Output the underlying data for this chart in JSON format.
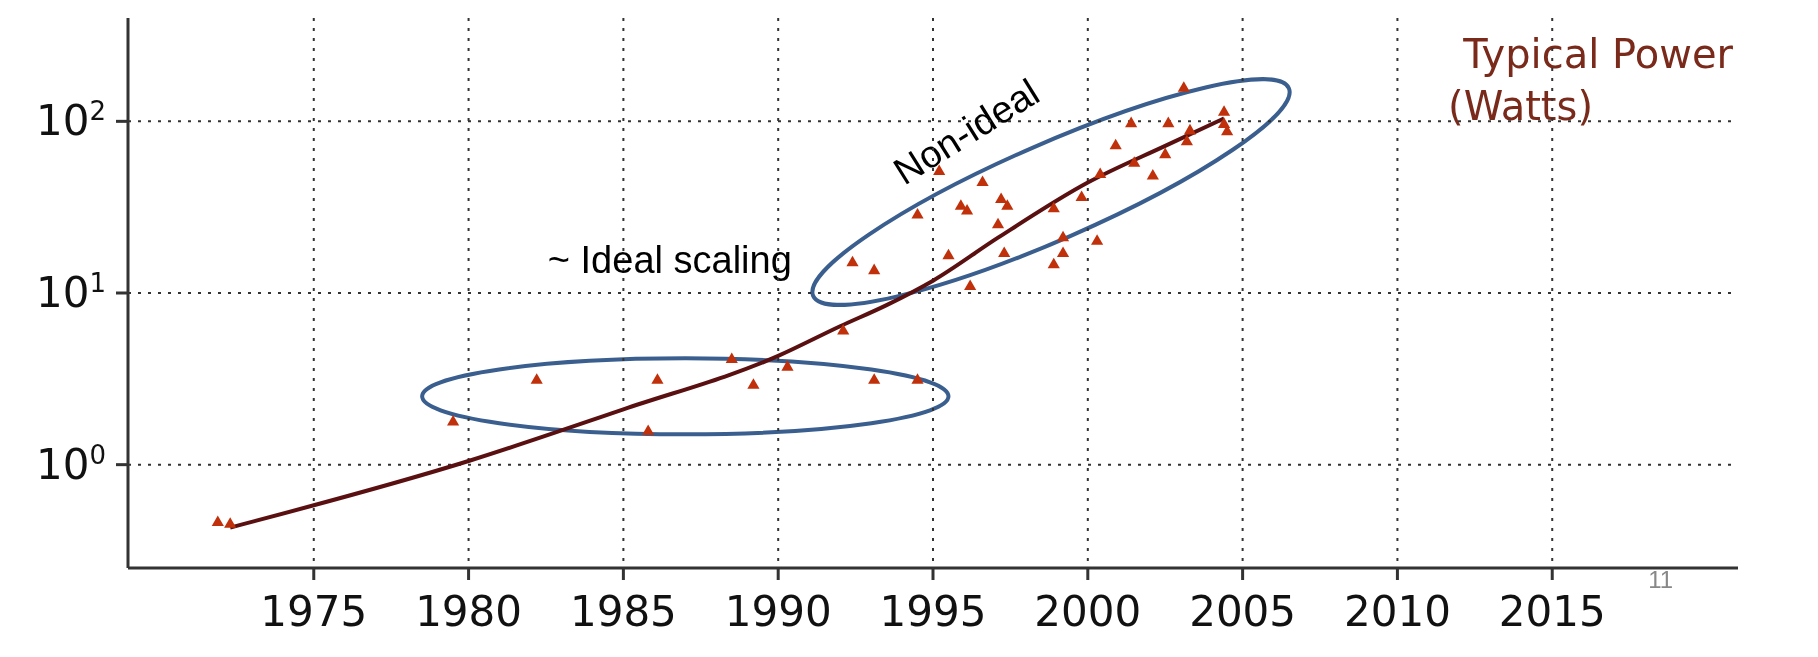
{
  "chart_data": {
    "type": "scatter",
    "ylabel": "Typical Power (Watts)",
    "log": "y",
    "grid": true,
    "marker": "triangle",
    "xlim": [
      1969,
      2021
    ],
    "xticks": [
      1975,
      1980,
      1985,
      1990,
      1995,
      2000,
      2005,
      2010,
      2015
    ],
    "ylim": [
      0.25,
      400
    ],
    "yticks": [
      {
        "value": 1,
        "label": "10$^{0}$"
      },
      {
        "value": 10,
        "label": "10$^{1}$"
      },
      {
        "value": 100,
        "label": "10$^{2}$"
      }
    ],
    "annotations": [
      "~ Ideal scaling",
      "Non-ideal",
      "11"
    ],
    "series": [
      {
        "color": "#c0300a",
        "x": [
          1971.9,
          1972.3,
          1979.5,
          1982.2,
          1985.8,
          1986.1,
          1988.5,
          1989.2,
          1990.3,
          1992.1,
          1992.4,
          1993.1,
          1993.1,
          1994.5,
          1994.5,
          1995.2,
          1995.5,
          1995.9,
          1996.1,
          1996.2,
          1996.6,
          1997.1,
          1997.2,
          1997.4,
          1997.3,
          1998.9,
          1998.9,
          1999.2,
          1999.2,
          1999.8,
          2000.3,
          2000.4,
          2000.9,
          2001.4,
          2001.5,
          2002.1,
          2002.5,
          2002.6,
          2003.1,
          2003.2,
          2003.3,
          2004.4,
          2004.4,
          2004.5
        ],
        "values": [
          0.46,
          0.45,
          1.77,
          3.1,
          1.56,
          3.1,
          4.1,
          2.9,
          3.7,
          6.0,
          15,
          13.5,
          3.1,
          3.1,
          28.5,
          51,
          16.5,
          32,
          30,
          10.9,
          44,
          25,
          35,
          32,
          17,
          31,
          14.6,
          21,
          17,
          36,
          20,
          49,
          72,
          97,
          57,
          48,
          64,
          97,
          156,
          76,
          88,
          113,
          96,
          87
        ]
      },
      {
        "type": "line",
        "color": "#5a1010",
        "marker": "none",
        "x": [
          1972.3,
          1980,
          1985,
          1990,
          1992,
          1993.5,
          1995,
          1997.1,
          2000,
          2002.5,
          2004.4
        ],
        "values": [
          0.43,
          1.05,
          2.1,
          4.3,
          6.4,
          8.5,
          11.8,
          21,
          44,
          72,
          104
        ]
      }
    ]
  }
}
